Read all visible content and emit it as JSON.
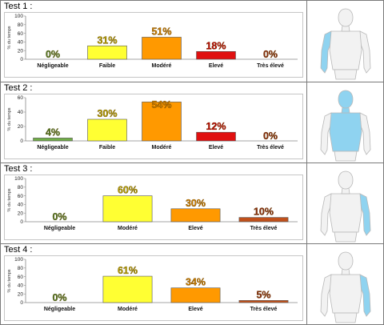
{
  "rows": [
    {
      "label": "Test 1 :"
    },
    {
      "label": "Test 2 :"
    },
    {
      "label": "Test 3 :"
    },
    {
      "label": "Test 4 :"
    }
  ],
  "colors": {
    "Négligeable": "#70ad47",
    "Faible": "#ffff33",
    "Modéré": "#ff9900",
    "Elevé": "#e01010",
    "Très élevé": "#c0504d",
    "label_green": "#4f7f2a",
    "label_olive": "#b7a400",
    "label_orange": "#d08000",
    "label_red": "#c00000",
    "label_brown": "#8b2c10",
    "highlight": "#8fd3f0"
  },
  "chart_data": [
    {
      "type": "bar",
      "title": "",
      "ylabel": "% du temps",
      "ylim": [
        0,
        100
      ],
      "yticks": [
        "0",
        "20",
        "40",
        "60",
        "80",
        "100"
      ],
      "categories": [
        "Négligeable",
        "Faible",
        "Modéré",
        "Elevé",
        "Très élevé"
      ],
      "values": [
        0,
        31,
        51,
        18,
        0
      ],
      "value_labels": [
        "0%",
        "31%",
        "51%",
        "18%",
        "0%"
      ],
      "bar_colors": [
        "#70ad47",
        "#ffff33",
        "#ff9900",
        "#e01010",
        "#c0504d"
      ],
      "label_colors": [
        "#4f7f2a",
        "#b7a400",
        "#d08000",
        "#c00000",
        "#8b2c10"
      ]
    },
    {
      "type": "bar",
      "title": "",
      "ylabel": "% du temps",
      "ylim": [
        0,
        60
      ],
      "yticks": [
        "0",
        "20",
        "40",
        "60"
      ],
      "categories": [
        "Négligeable",
        "Faible",
        "Modéré",
        "Elevé",
        "Très élevé"
      ],
      "values": [
        4,
        30,
        54,
        12,
        0
      ],
      "value_labels": [
        "4%",
        "30%",
        "54%",
        "12%",
        "0%"
      ],
      "bar_colors": [
        "#70ad47",
        "#ffff33",
        "#ff9900",
        "#e01010",
        "#c0504d"
      ],
      "label_colors": [
        "#4f7f2a",
        "#b7a400",
        "#d08000",
        "#c00000",
        "#8b2c10"
      ]
    },
    {
      "type": "bar",
      "title": "",
      "ylabel": "% du temps",
      "ylim": [
        0,
        100
      ],
      "yticks": [
        "0",
        "20",
        "40",
        "60",
        "80",
        "100"
      ],
      "categories": [
        "Négligeable",
        "Modéré",
        "Elevé",
        "Très élevé"
      ],
      "values": [
        0,
        60,
        30,
        10
      ],
      "value_labels": [
        "0%",
        "60%",
        "30%",
        "10%"
      ],
      "bar_colors": [
        "#70ad47",
        "#ffff33",
        "#ff9900",
        "#c0501b"
      ],
      "label_colors": [
        "#4f7f2a",
        "#b7a400",
        "#d08000",
        "#8b2c10"
      ]
    },
    {
      "type": "bar",
      "title": "",
      "ylabel": "% du temps",
      "ylim": [
        0,
        100
      ],
      "yticks": [
        "0",
        "20",
        "40",
        "60",
        "80",
        "100"
      ],
      "categories": [
        "Négligeable",
        "Modéré",
        "Elevé",
        "Très élevé"
      ],
      "values": [
        0,
        61,
        34,
        5
      ],
      "value_labels": [
        "0%",
        "61%",
        "34%",
        "5%"
      ],
      "bar_colors": [
        "#70ad47",
        "#ffff33",
        "#ff9900",
        "#c0501b"
      ],
      "label_colors": [
        "#4f7f2a",
        "#b7a400",
        "#d08000",
        "#8b2c10"
      ]
    }
  ],
  "figures": [
    {
      "icon": "mannequin-right-arm-highlight-icon",
      "highlight": "right-arm"
    },
    {
      "icon": "mannequin-torso-head-highlight-icon",
      "highlight": "torso-head"
    },
    {
      "icon": "mannequin-left-arm-highlight-icon",
      "highlight": "left-arm"
    },
    {
      "icon": "mannequin-left-arm-highlight-icon",
      "highlight": "left-arm"
    }
  ]
}
